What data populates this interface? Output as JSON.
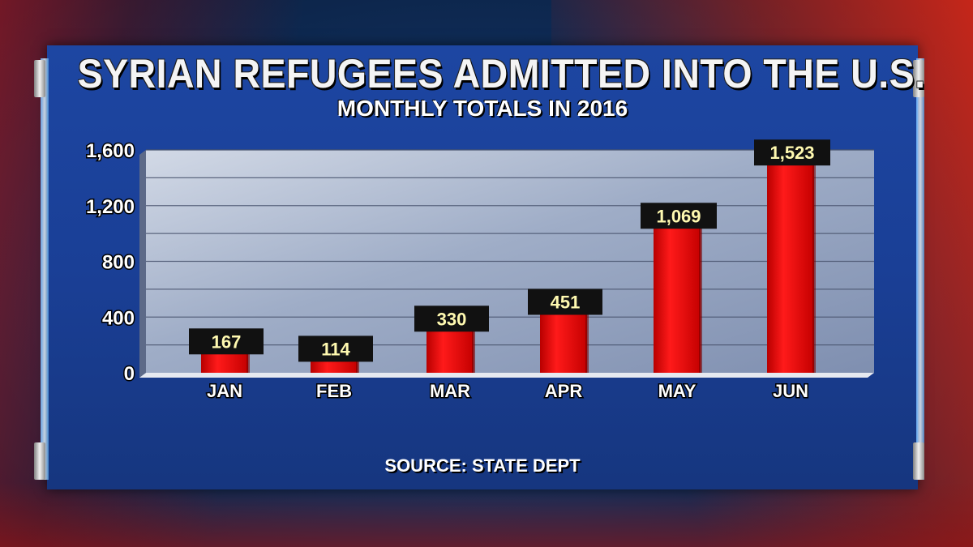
{
  "chart_data": {
    "type": "bar",
    "title": "SYRIAN REFUGEES ADMITTED INTO THE U.S.",
    "subtitle": "MONTHLY TOTALS IN 2016",
    "source": "SOURCE: STATE DEPT",
    "categories": [
      "JAN",
      "FEB",
      "MAR",
      "APR",
      "MAY",
      "JUN"
    ],
    "values": [
      167,
      114,
      330,
      451,
      1069,
      1523
    ],
    "data_labels": [
      "167",
      "114",
      "330",
      "451",
      "1,069",
      "1,523"
    ],
    "yticks": [
      0,
      400,
      800,
      1200,
      1600
    ],
    "ytick_labels": [
      "0",
      "400",
      "800",
      "1,200",
      "1,600"
    ],
    "ylim": [
      0,
      1600
    ],
    "grid": true,
    "colors": {
      "bar": "#e00000",
      "label_box": "#111111",
      "label_text": "#fff9b0",
      "plot_bg": "#a9b6cf"
    }
  }
}
